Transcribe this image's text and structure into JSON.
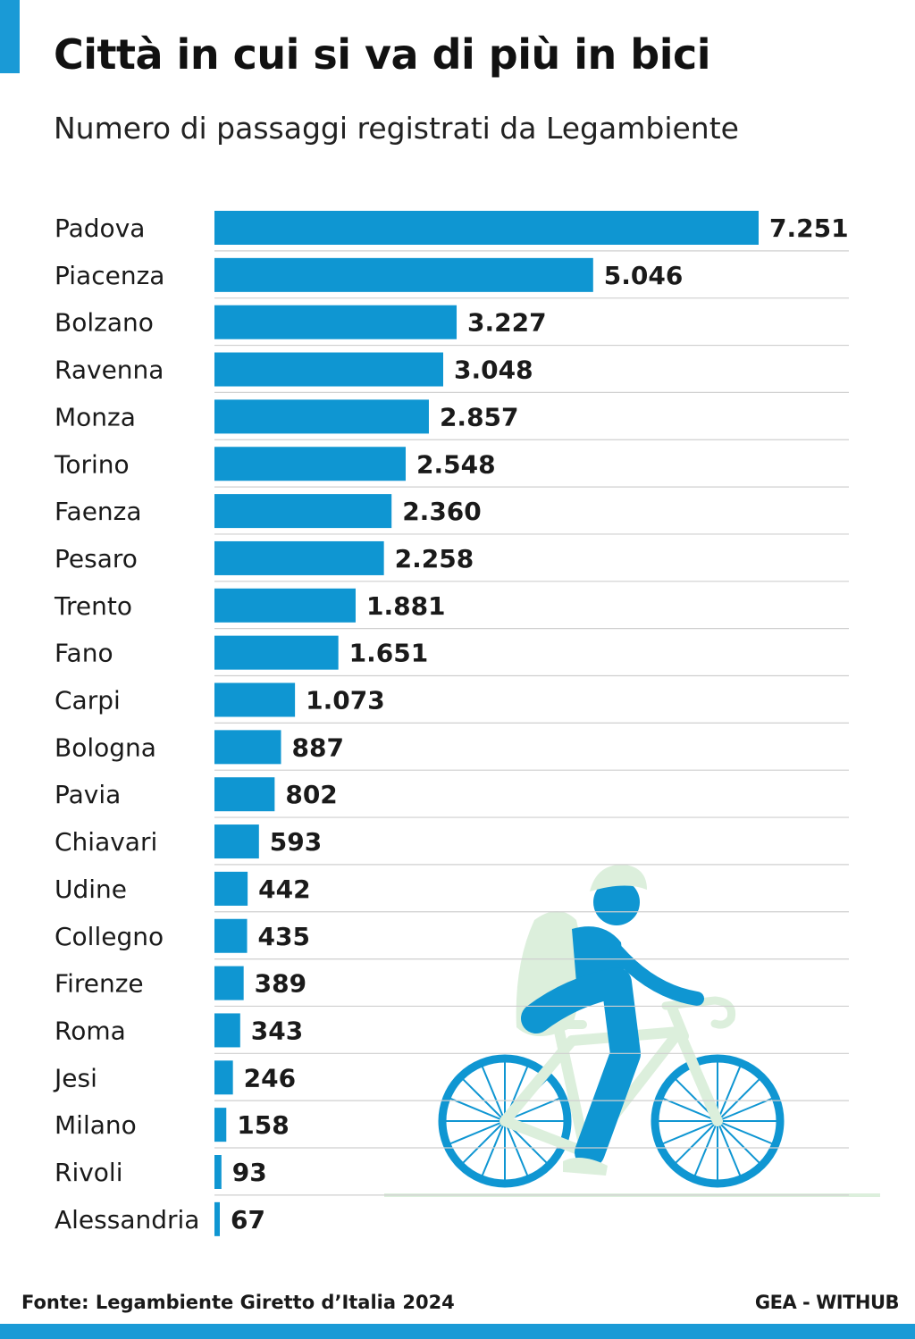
{
  "title": "Città in cui si va di più in bici",
  "subtitle": "Numero di passaggi registrati da Legambiente",
  "source": "Fonte: Legambiente Giretto d’Italia 2024",
  "brand": "GEA - WITHUB",
  "colors": {
    "bar": "#0f96d2",
    "accent": "#1a9ad6",
    "gridline": "#cfcfcf",
    "cyclist_body": "#0f96d2",
    "cyclist_bike": "#dcefdc"
  },
  "icons": [
    "cyclist-illustration"
  ],
  "chart_data": {
    "type": "bar",
    "orientation": "horizontal",
    "title": "Città in cui si va di più in bici",
    "subtitle": "Numero di passaggi registrati da Legambiente",
    "xlabel": "",
    "ylabel": "",
    "xlim": [
      0,
      7251
    ],
    "grid": false,
    "legend": "none",
    "categories": [
      "Padova",
      "Piacenza",
      "Bolzano",
      "Ravenna",
      "Monza",
      "Torino",
      "Faenza",
      "Pesaro",
      "Trento",
      "Fano",
      "Carpi",
      "Bologna",
      "Pavia",
      "Chiavari",
      "Udine",
      "Collegno",
      "Firenze",
      "Roma",
      "Jesi",
      "Milano",
      "Rivoli",
      "Alessandria"
    ],
    "values": [
      7251,
      5046,
      3227,
      3048,
      2857,
      2548,
      2360,
      2258,
      1881,
      1651,
      1073,
      887,
      802,
      593,
      442,
      435,
      389,
      343,
      246,
      158,
      93,
      67
    ],
    "value_labels": [
      "7.251",
      "5.046",
      "3.227",
      "3.048",
      "2.857",
      "2.548",
      "2.360",
      "2.258",
      "1.881",
      "1.651",
      "1.073",
      "887",
      "802",
      "593",
      "442",
      "435",
      "389",
      "343",
      "246",
      "158",
      "93",
      "67"
    ]
  }
}
